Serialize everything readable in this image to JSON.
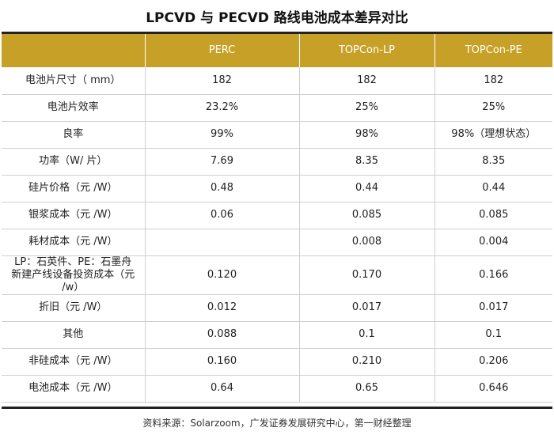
{
  "title": "LPCVD 与 PECVD 路线电池成本差异对比",
  "table": {
    "headers": [
      "",
      "PERC",
      "TOPCon-LP",
      "TOPCon-PE"
    ],
    "rows": [
      {
        "label": "电池片尺寸（ mm）",
        "perc": "182",
        "topcon_lp": "182",
        "topcon_pe": "182"
      },
      {
        "label": "电池片效率",
        "perc": "23.2%",
        "topcon_lp": "25%",
        "topcon_pe": "25%"
      },
      {
        "label": "良率",
        "perc": "99%",
        "topcon_lp": "98%",
        "topcon_pe": "98%（理想状态）"
      },
      {
        "label": "功率（W/ 片）",
        "perc": "7.69",
        "topcon_lp": "8.35",
        "topcon_pe": "8.35"
      },
      {
        "label": "硅片价格（元 /W）",
        "perc": "0.48",
        "topcon_lp": "0.44",
        "topcon_pe": "0.44"
      },
      {
        "label": "银浆成本（元 /W）",
        "perc": "0.06",
        "topcon_lp": "0.085",
        "topcon_pe": "0.085"
      },
      {
        "label": "耗材成本（元 /W）",
        "perc": "",
        "topcon_lp": "0.008",
        "topcon_pe": "0.004"
      },
      {
        "label_line1": "LP：石英件、PE：石墨舟",
        "label_line2": "新建产线设备投资成本（元 /w）",
        "perc": "0.120",
        "topcon_lp": "0.170",
        "topcon_pe": "0.166"
      },
      {
        "label": "折旧（元 /W）",
        "perc": "0.012",
        "topcon_lp": "0.017",
        "topcon_pe": "0.017"
      },
      {
        "label": "其他",
        "perc": "0.088",
        "topcon_lp": "0.1",
        "topcon_pe": "0.1"
      },
      {
        "label": "非硅成本（元 /W）",
        "perc": "0.160",
        "topcon_lp": "0.210",
        "topcon_pe": "0.206"
      },
      {
        "label": "电池成本（元 /W）",
        "perc": "0.64",
        "topcon_lp": "0.65",
        "topcon_pe": "0.646"
      }
    ]
  },
  "source": "资料来源：Solarzoom，广发证券发展研究中心，第一财经整理",
  "colors": {
    "header_bg": "#c7a127",
    "header_text": "#ffffff",
    "rule": "#222222"
  }
}
